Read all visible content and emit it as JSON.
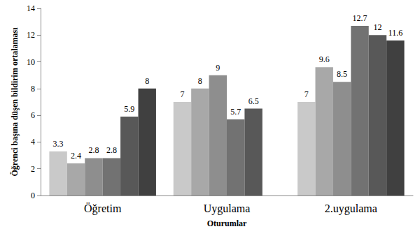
{
  "chart_data": {
    "type": "bar",
    "x_label": "Oturumlar",
    "y_label": "Öğrenci başına düşen bildirim ortalaması",
    "categories": [
      "Öğretim",
      "Uygulama",
      "2.uygulama"
    ],
    "series": [
      {
        "color": "#c9c9c9",
        "values": [
          3.3,
          7,
          7
        ]
      },
      {
        "color": "#a8a8a8",
        "values": [
          2.4,
          8,
          9.6
        ]
      },
      {
        "color": "#8e8e8e",
        "values": [
          2.8,
          9,
          8.5
        ]
      },
      {
        "color": "#727272",
        "values": [
          2.8,
          5.7,
          12.7
        ]
      },
      {
        "color": "#585858",
        "values": [
          5.9,
          6.5,
          12
        ]
      },
      {
        "color": "#404040",
        "values": [
          8,
          null,
          11.6
        ]
      }
    ],
    "ylim": [
      0,
      14
    ],
    "yticks": [
      0,
      2,
      4,
      6,
      8,
      10,
      12,
      14
    ],
    "grid": false,
    "data_labels": true
  }
}
